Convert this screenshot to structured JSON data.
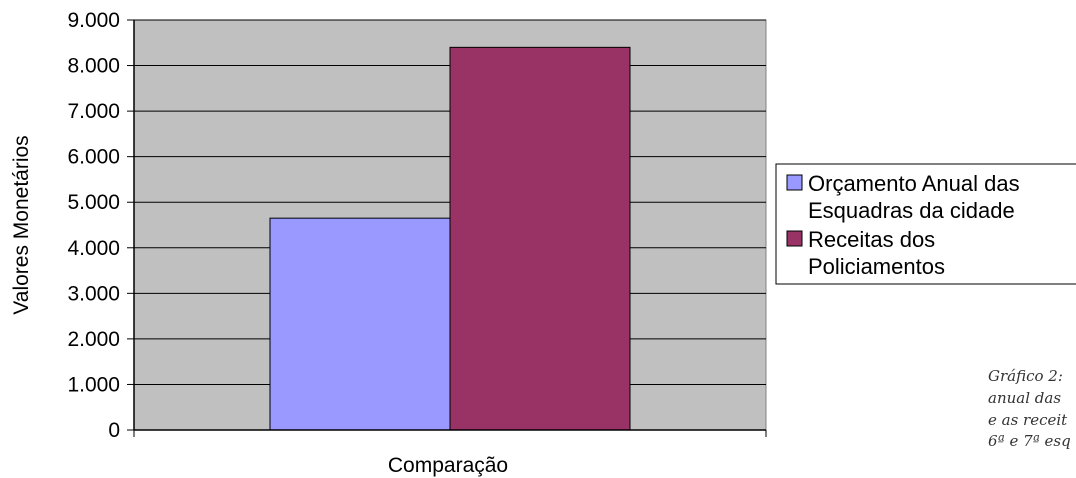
{
  "chart_data": {
    "type": "bar",
    "categories": [
      ""
    ],
    "series": [
      {
        "name": "Orçamento Anual das Esquadras da cidade",
        "values": [
          4650
        ],
        "color": "#9999FF"
      },
      {
        "name": "Receitas dos Policiamentos",
        "values": [
          8400
        ],
        "color": "#993366"
      }
    ],
    "title": "",
    "xlabel": "Comparação",
    "ylabel": "Valores Monetários",
    "ylim": [
      0,
      9000
    ],
    "yticks": [
      0,
      1000,
      2000,
      3000,
      4000,
      5000,
      6000,
      7000,
      8000,
      9000
    ],
    "ytick_labels": [
      "0",
      "1.000",
      "2.000",
      "3.000",
      "4.000",
      "5.000",
      "6.000",
      "7.000",
      "8.000",
      "9.000"
    ],
    "grid": true,
    "plot_background": "#C0C0C0",
    "legend_position": "right",
    "legend_entries": [
      [
        "Orçamento Anual das",
        "Esquadras da cidade"
      ],
      [
        "Receitas dos",
        "Policiamentos"
      ]
    ]
  },
  "caption": {
    "lines": [
      "Gráfico 2:",
      "anual das",
      "e as receit",
      "6ª e 7ª esq"
    ]
  }
}
